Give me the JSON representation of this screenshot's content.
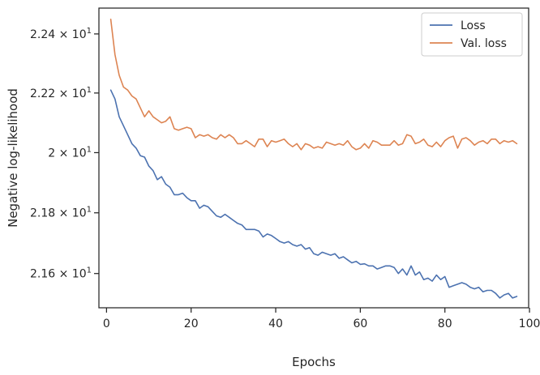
{
  "chart_data": {
    "type": "line",
    "title": "",
    "xlabel": "Epochs",
    "ylabel": "Negative log-likelihood",
    "xlim": [
      -1.8,
      99.8
    ],
    "ylim": [
      21.488,
      22.488
    ],
    "yscale": "log",
    "grid": false,
    "legend_position": "top-right",
    "x_ticks": [
      {
        "value": 0,
        "label": "0"
      },
      {
        "value": 20,
        "label": "20"
      },
      {
        "value": 40,
        "label": "40"
      },
      {
        "value": 60,
        "label": "60"
      },
      {
        "value": 80,
        "label": "80"
      },
      {
        "value": 100,
        "label": "100"
      }
    ],
    "y_ticks": [
      {
        "value": 21.6,
        "mantissa": "2.16",
        "sep": " × 10",
        "exp": "1"
      },
      {
        "value": 21.8,
        "mantissa": "2.18",
        "sep": " × 10",
        "exp": "1"
      },
      {
        "value": 22.0,
        "mantissa": "2",
        "sep": " × 10",
        "exp": "1"
      },
      {
        "value": 22.2,
        "mantissa": "2.22",
        "sep": " × 10",
        "exp": "1"
      },
      {
        "value": 22.4,
        "mantissa": "2.24",
        "sep": " × 10",
        "exp": "1"
      }
    ],
    "x": [
      1,
      2,
      3,
      4,
      5,
      6,
      7,
      8,
      9,
      10,
      11,
      12,
      13,
      14,
      15,
      16,
      17,
      18,
      19,
      20,
      21,
      22,
      23,
      24,
      25,
      26,
      27,
      28,
      29,
      30,
      31,
      32,
      33,
      34,
      35,
      36,
      37,
      38,
      39,
      40,
      41,
      42,
      43,
      44,
      45,
      46,
      47,
      48,
      49,
      50,
      51,
      52,
      53,
      54,
      55,
      56,
      57,
      58,
      59,
      60,
      61,
      62,
      63,
      64,
      65,
      66,
      67,
      68,
      69,
      70,
      71,
      72,
      73,
      74,
      75,
      76,
      77,
      78,
      79,
      80,
      81,
      82,
      83,
      84,
      85,
      86,
      87,
      88,
      89,
      90,
      91,
      92,
      93,
      94,
      95,
      96,
      97
    ],
    "series": [
      {
        "name": "Loss",
        "color": "#4c72b0",
        "values": [
          22.21,
          22.18,
          22.12,
          22.09,
          22.06,
          22.03,
          22.015,
          21.99,
          21.985,
          21.955,
          21.94,
          21.91,
          21.92,
          21.895,
          21.885,
          21.86,
          21.86,
          21.865,
          21.85,
          21.84,
          21.84,
          21.815,
          21.825,
          21.82,
          21.805,
          21.79,
          21.785,
          21.795,
          21.785,
          21.775,
          21.765,
          21.76,
          21.745,
          21.745,
          21.745,
          21.74,
          21.72,
          21.73,
          21.725,
          21.715,
          21.705,
          21.7,
          21.705,
          21.695,
          21.69,
          21.695,
          21.68,
          21.685,
          21.665,
          21.66,
          21.67,
          21.665,
          21.66,
          21.665,
          21.65,
          21.655,
          21.645,
          21.635,
          21.64,
          21.63,
          21.632,
          21.625,
          21.625,
          21.615,
          21.62,
          21.625,
          21.625,
          21.62,
          21.6,
          21.615,
          21.595,
          21.625,
          21.595,
          21.605,
          21.58,
          21.585,
          21.575,
          21.595,
          21.58,
          21.59,
          21.555,
          21.56,
          21.565,
          21.57,
          21.565,
          21.555,
          21.55,
          21.555,
          21.54,
          21.545,
          21.545,
          21.535,
          21.52,
          21.53,
          21.535,
          21.52,
          21.525
        ]
      },
      {
        "name": "Val. loss",
        "color": "#dd8452",
        "values": [
          22.45,
          22.33,
          22.26,
          22.22,
          22.21,
          22.19,
          22.18,
          22.15,
          22.12,
          22.14,
          22.12,
          22.11,
          22.1,
          22.105,
          22.12,
          22.08,
          22.075,
          22.08,
          22.085,
          22.08,
          22.05,
          22.06,
          22.055,
          22.06,
          22.05,
          22.045,
          22.06,
          22.05,
          22.06,
          22.05,
          22.03,
          22.03,
          22.04,
          22.03,
          22.02,
          22.045,
          22.045,
          22.02,
          22.04,
          22.035,
          22.04,
          22.045,
          22.03,
          22.02,
          22.03,
          22.01,
          22.03,
          22.025,
          22.015,
          22.02,
          22.015,
          22.035,
          22.03,
          22.025,
          22.03,
          22.025,
          22.04,
          22.02,
          22.01,
          22.015,
          22.03,
          22.015,
          22.04,
          22.035,
          22.025,
          22.025,
          22.025,
          22.04,
          22.025,
          22.03,
          22.06,
          22.055,
          22.03,
          22.035,
          22.045,
          22.025,
          22.02,
          22.035,
          22.02,
          22.04,
          22.05,
          22.055,
          22.015,
          22.045,
          22.05,
          22.04,
          22.025,
          22.035,
          22.04,
          22.03,
          22.045,
          22.045,
          22.03,
          22.04,
          22.035,
          22.04,
          22.03
        ]
      }
    ]
  }
}
